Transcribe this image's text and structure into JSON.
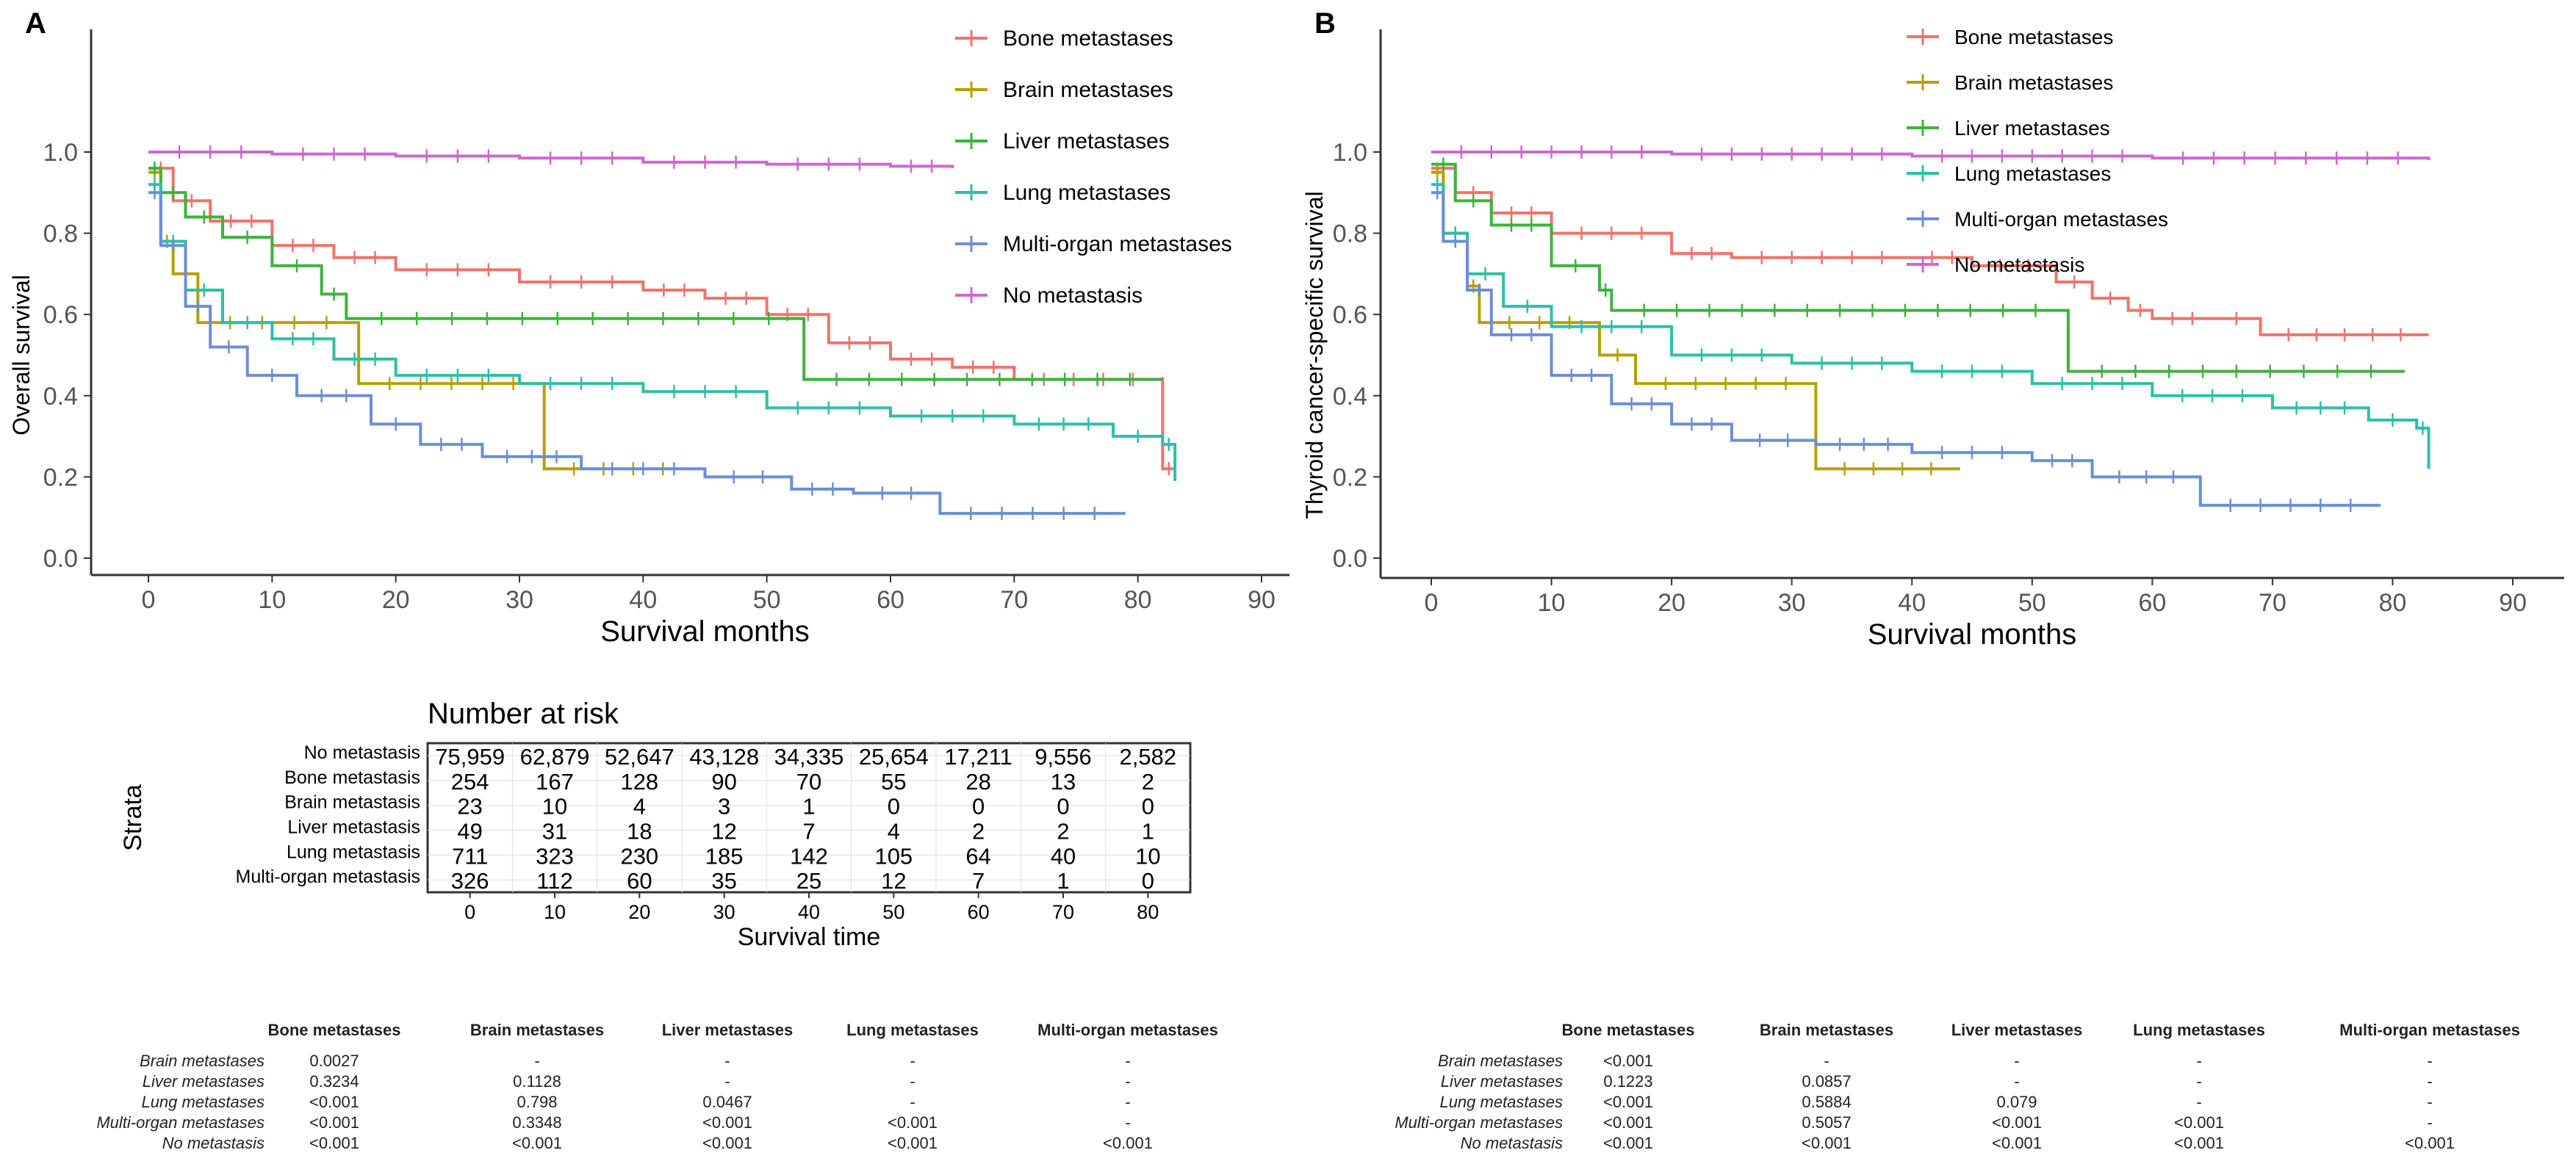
{
  "chart_data": [
    {
      "type": "line",
      "panel": "A",
      "ylabel": "Overall survival",
      "xlabel": "Survival months",
      "xlim": [
        0,
        90
      ],
      "ylim": [
        0,
        1
      ],
      "xticks": [
        "0",
        "10",
        "20",
        "30",
        "40",
        "50",
        "60",
        "70",
        "80",
        "90"
      ],
      "yticks": [
        "0.0",
        "0.2",
        "0.4",
        "0.6",
        "0.8",
        "1.0"
      ],
      "legend_position": "top-right",
      "series": [
        {
          "name": "Bone metastases",
          "color": "#F0736B",
          "points": [
            [
              0,
              0.96
            ],
            [
              2,
              0.88
            ],
            [
              5,
              0.83
            ],
            [
              10,
              0.77
            ],
            [
              15,
              0.74
            ],
            [
              20,
              0.71
            ],
            [
              30,
              0.68
            ],
            [
              40,
              0.66
            ],
            [
              45,
              0.64
            ],
            [
              50,
              0.6
            ],
            [
              55,
              0.53
            ],
            [
              60,
              0.49
            ],
            [
              65,
              0.47
            ],
            [
              70,
              0.44
            ],
            [
              82,
              0.43
            ],
            [
              82,
              0.22
            ],
            [
              83,
              0.22
            ]
          ]
        },
        {
          "name": "Brain metastases",
          "color": "#B79F00",
          "points": [
            [
              0,
              0.95
            ],
            [
              1,
              0.78
            ],
            [
              2,
              0.7
            ],
            [
              4,
              0.58
            ],
            [
              17,
              0.43
            ],
            [
              32,
              0.22
            ],
            [
              44,
              0.22
            ]
          ]
        },
        {
          "name": "Liver metastases",
          "color": "#3CB33C",
          "points": [
            [
              0,
              0.96
            ],
            [
              1,
              0.9
            ],
            [
              3,
              0.84
            ],
            [
              6,
              0.79
            ],
            [
              10,
              0.72
            ],
            [
              14,
              0.65
            ],
            [
              16,
              0.59
            ],
            [
              53,
              0.44
            ],
            [
              82,
              0.44
            ]
          ]
        },
        {
          "name": "Lung metastases",
          "color": "#2DBFA8",
          "points": [
            [
              0,
              0.92
            ],
            [
              1,
              0.78
            ],
            [
              3,
              0.66
            ],
            [
              6,
              0.58
            ],
            [
              10,
              0.54
            ],
            [
              15,
              0.49
            ],
            [
              20,
              0.45
            ],
            [
              30,
              0.43
            ],
            [
              40,
              0.41
            ],
            [
              50,
              0.37
            ],
            [
              60,
              0.35
            ],
            [
              70,
              0.33
            ],
            [
              78,
              0.3
            ],
            [
              82,
              0.28
            ],
            [
              83,
              0.19
            ]
          ]
        },
        {
          "name": "Multi-organ metastases",
          "color": "#6A8FD8",
          "points": [
            [
              0,
              0.9
            ],
            [
              1,
              0.77
            ],
            [
              3,
              0.62
            ],
            [
              5,
              0.52
            ],
            [
              8,
              0.45
            ],
            [
              12,
              0.4
            ],
            [
              18,
              0.33
            ],
            [
              22,
              0.28
            ],
            [
              27,
              0.25
            ],
            [
              35,
              0.22
            ],
            [
              45,
              0.2
            ],
            [
              52,
              0.17
            ],
            [
              57,
              0.16
            ],
            [
              64,
              0.11
            ],
            [
              79,
              0.11
            ]
          ]
        },
        {
          "name": "No metastasis",
          "color": "#D066D0",
          "points": [
            [
              0,
              1.0
            ],
            [
              10,
              0.995
            ],
            [
              20,
              0.99
            ],
            [
              30,
              0.985
            ],
            [
              40,
              0.975
            ],
            [
              50,
              0.97
            ],
            [
              60,
              0.965
            ],
            [
              65,
              0.96
            ]
          ]
        }
      ]
    },
    {
      "type": "line",
      "panel": "B",
      "ylabel": "Thyroid cancer-specific survival",
      "xlabel": "Survival months",
      "xlim": [
        0,
        90
      ],
      "ylim": [
        0,
        1
      ],
      "xticks": [
        "0",
        "10",
        "20",
        "30",
        "40",
        "50",
        "60",
        "70",
        "80",
        "90"
      ],
      "yticks": [
        "0.0",
        "0.2",
        "0.4",
        "0.6",
        "0.8",
        "1.0"
      ],
      "legend_position": "top-right",
      "series": [
        {
          "name": "Bone metastases",
          "color": "#F0736B",
          "points": [
            [
              0,
              0.96
            ],
            [
              2,
              0.9
            ],
            [
              5,
              0.85
            ],
            [
              10,
              0.8
            ],
            [
              20,
              0.75
            ],
            [
              25,
              0.74
            ],
            [
              40,
              0.74
            ],
            [
              45,
              0.72
            ],
            [
              52,
              0.68
            ],
            [
              55,
              0.64
            ],
            [
              58,
              0.61
            ],
            [
              60,
              0.59
            ],
            [
              65,
              0.59
            ],
            [
              69,
              0.55
            ],
            [
              83,
              0.55
            ]
          ]
        },
        {
          "name": "Brain metastases",
          "color": "#B79F00",
          "points": [
            [
              0,
              0.95
            ],
            [
              1,
              0.8
            ],
            [
              3,
              0.67
            ],
            [
              4,
              0.58
            ],
            [
              14,
              0.5
            ],
            [
              17,
              0.43
            ],
            [
              32,
              0.22
            ],
            [
              44,
              0.22
            ]
          ]
        },
        {
          "name": "Liver metastases",
          "color": "#3CB33C",
          "points": [
            [
              0,
              0.97
            ],
            [
              2,
              0.88
            ],
            [
              5,
              0.82
            ],
            [
              10,
              0.72
            ],
            [
              14,
              0.66
            ],
            [
              15,
              0.61
            ],
            [
              53,
              0.46
            ],
            [
              81,
              0.46
            ]
          ]
        },
        {
          "name": "Lung metastases",
          "color": "#2DBFA8",
          "points": [
            [
              0,
              0.92
            ],
            [
              1,
              0.8
            ],
            [
              3,
              0.7
            ],
            [
              6,
              0.62
            ],
            [
              10,
              0.57
            ],
            [
              20,
              0.5
            ],
            [
              30,
              0.48
            ],
            [
              40,
              0.46
            ],
            [
              50,
              0.43
            ],
            [
              60,
              0.4
            ],
            [
              70,
              0.37
            ],
            [
              78,
              0.34
            ],
            [
              82,
              0.32
            ],
            [
              83,
              0.22
            ]
          ]
        },
        {
          "name": "Multi-organ metastases",
          "color": "#6A8FD8",
          "points": [
            [
              0,
              0.9
            ],
            [
              1,
              0.78
            ],
            [
              3,
              0.66
            ],
            [
              5,
              0.55
            ],
            [
              10,
              0.45
            ],
            [
              15,
              0.38
            ],
            [
              20,
              0.33
            ],
            [
              25,
              0.29
            ],
            [
              32,
              0.28
            ],
            [
              40,
              0.26
            ],
            [
              50,
              0.24
            ],
            [
              55,
              0.2
            ],
            [
              64,
              0.13
            ],
            [
              79,
              0.13
            ]
          ]
        },
        {
          "name": "No metastasis",
          "color": "#D066D0",
          "points": [
            [
              0,
              1.0
            ],
            [
              20,
              0.995
            ],
            [
              40,
              0.99
            ],
            [
              60,
              0.985
            ],
            [
              83,
              0.98
            ]
          ]
        }
      ]
    },
    {
      "type": "table",
      "title": "Number at risk",
      "ylabel": "Strata",
      "xlabel": "Survival time",
      "times": [
        "0",
        "10",
        "20",
        "30",
        "40",
        "50",
        "60",
        "70",
        "80"
      ],
      "rows": [
        {
          "label": "No metastasis",
          "values": [
            "75,959",
            "62,879",
            "52,647",
            "43,128",
            "34,335",
            "25,654",
            "17,211",
            "9,556",
            "2,582"
          ]
        },
        {
          "label": "Bone metastasis",
          "values": [
            "254",
            "167",
            "128",
            "90",
            "70",
            "55",
            "28",
            "13",
            "2"
          ]
        },
        {
          "label": "Brain metastasis",
          "values": [
            "23",
            "10",
            "4",
            "3",
            "1",
            "0",
            "0",
            "0",
            "0"
          ]
        },
        {
          "label": "Liver metastasis",
          "values": [
            "49",
            "31",
            "18",
            "12",
            "7",
            "4",
            "2",
            "2",
            "1"
          ]
        },
        {
          "label": "Lung metastasis",
          "values": [
            "711",
            "323",
            "230",
            "185",
            "142",
            "105",
            "64",
            "40",
            "10"
          ]
        },
        {
          "label": "Multi-organ metastasis",
          "values": [
            "326",
            "112",
            "60",
            "35",
            "25",
            "12",
            "7",
            "1",
            "0"
          ]
        }
      ]
    }
  ],
  "pvalue_tables": [
    {
      "columns": [
        "Bone metastases",
        "Brain metastases",
        "Liver metastases",
        "Lung metastases",
        "Multi-organ metastases"
      ],
      "rows": [
        {
          "label": "Brain metastases",
          "values": [
            "0.0027",
            "-",
            "-",
            "-",
            "-"
          ]
        },
        {
          "label": "Liver metastases",
          "values": [
            "0.3234",
            "0.1128",
            "-",
            "-",
            "-"
          ]
        },
        {
          "label": "Lung metastases",
          "values": [
            "<0.001",
            "0.798",
            "0.0467",
            "-",
            "-"
          ]
        },
        {
          "label": "Multi-organ metastases",
          "values": [
            "<0.001",
            "0.3348",
            "<0.001",
            "<0.001",
            "-"
          ]
        },
        {
          "label": "No metastasis",
          "values": [
            "<0.001",
            "<0.001",
            "<0.001",
            "<0.001",
            "<0.001"
          ]
        }
      ]
    },
    {
      "columns": [
        "Bone metastases",
        "Brain metastases",
        "Liver metastases",
        "Lung metastases",
        "Multi-organ metastases"
      ],
      "rows": [
        {
          "label": "Brain metastases",
          "values": [
            "<0.001",
            "-",
            "-",
            "-",
            "-"
          ]
        },
        {
          "label": "Liver metastases",
          "values": [
            "0.1223",
            "0.0857",
            "-",
            "-",
            "-"
          ]
        },
        {
          "label": "Lung metastases",
          "values": [
            "<0.001",
            "0.5884",
            "0.079",
            "-",
            "-"
          ]
        },
        {
          "label": "Multi-organ metastases",
          "values": [
            "<0.001",
            "0.5057",
            "<0.001",
            "<0.001",
            "-"
          ]
        },
        {
          "label": "No metastasis",
          "values": [
            "<0.001",
            "<0.001",
            "<0.001",
            "<0.001",
            "<0.001"
          ]
        }
      ]
    }
  ]
}
